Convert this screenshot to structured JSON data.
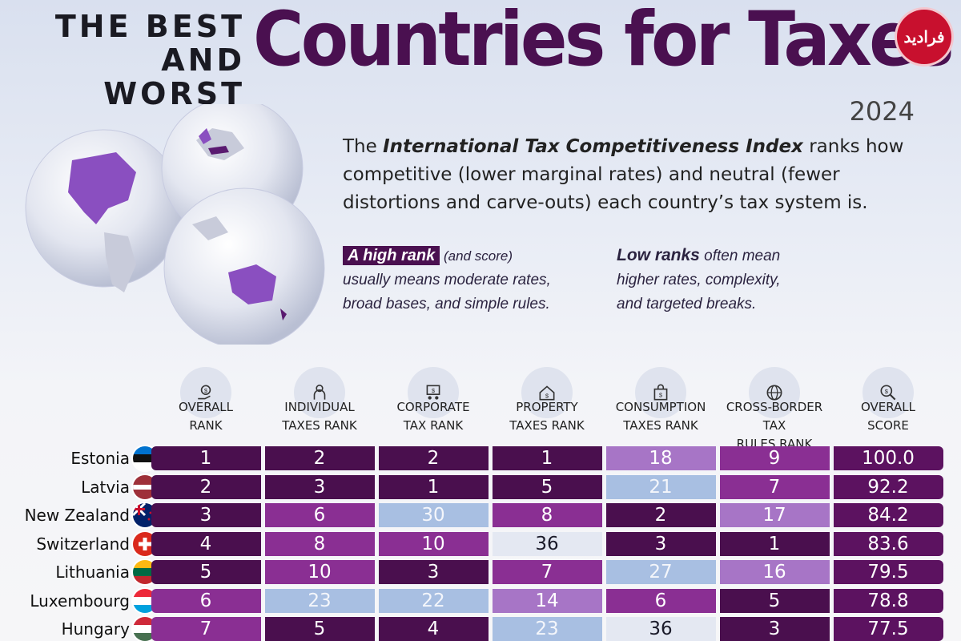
{
  "header": {
    "title_small_line1": "THE BEST",
    "title_small_line2": "AND WORST",
    "title_big": "Countries for Taxes",
    "year": "2024",
    "logo_text": "فرادید"
  },
  "intro": {
    "part1": "The ",
    "index_name": "International Tax Competitiveness Index",
    "part2": " ranks how competitive (lower marginal rates) and neutral (fewer distortions and carve-outs) each country’s tax system is."
  },
  "notes": {
    "high_tag": "A high rank",
    "high_small": " (and score)",
    "high_line2": "usually means moderate rates,",
    "high_line3": "broad bases, and simple rules.",
    "low_bold": "Low ranks",
    "low_small": " often mean",
    "low_line2": "higher rates, complexity,",
    "low_line3": "and targeted breaks."
  },
  "columns": [
    {
      "line1": "OVERALL",
      "line2": "RANK",
      "icon": "money-hand-icon"
    },
    {
      "line1": "INDIVIDUAL",
      "line2": "TAXES RANK",
      "icon": "person-icon"
    },
    {
      "line1": "CORPORATE",
      "line2": "TAX RANK",
      "icon": "corporate-icon"
    },
    {
      "line1": "PROPERTY",
      "line2": "TAXES RANK",
      "icon": "house-icon"
    },
    {
      "line1": "CONSUMPTION",
      "line2": "TAXES RANK",
      "icon": "shopping-bag-icon"
    },
    {
      "line1": "CROSS-BORDER TAX",
      "line2": "RULES RANK",
      "icon": "globe-icon"
    },
    {
      "line1": "OVERALL",
      "line2": "SCORE",
      "icon": "magnifier-icon"
    }
  ],
  "rows": [
    {
      "country": "Estonia",
      "values": [
        "1",
        "2",
        "2",
        "1",
        "18",
        "9",
        "100.0"
      ]
    },
    {
      "country": "Latvia",
      "values": [
        "2",
        "3",
        "1",
        "5",
        "21",
        "7",
        "92.2"
      ]
    },
    {
      "country": "New Zealand",
      "values": [
        "3",
        "6",
        "30",
        "8",
        "2",
        "17",
        "84.2"
      ]
    },
    {
      "country": "Switzerland",
      "values": [
        "4",
        "8",
        "10",
        "36",
        "3",
        "1",
        "83.6"
      ]
    },
    {
      "country": "Lithuania",
      "values": [
        "5",
        "10",
        "3",
        "7",
        "27",
        "16",
        "79.5"
      ]
    },
    {
      "country": "Luxembourg",
      "values": [
        "6",
        "23",
        "22",
        "14",
        "6",
        "5",
        "78.8"
      ]
    },
    {
      "country": "Hungary",
      "values": [
        "7",
        "5",
        "4",
        "23",
        "36",
        "3",
        "77.5"
      ]
    }
  ],
  "colors": {
    "title": "#4a1050",
    "rank_1_5": "#4a0f4e",
    "rank_6_10": "#8a2f93",
    "rank_11_20": "#a775c6",
    "rank_21_30": "#a8bfe2",
    "rank_31_plus": "#e4e8f2",
    "score": "#5c1260"
  }
}
